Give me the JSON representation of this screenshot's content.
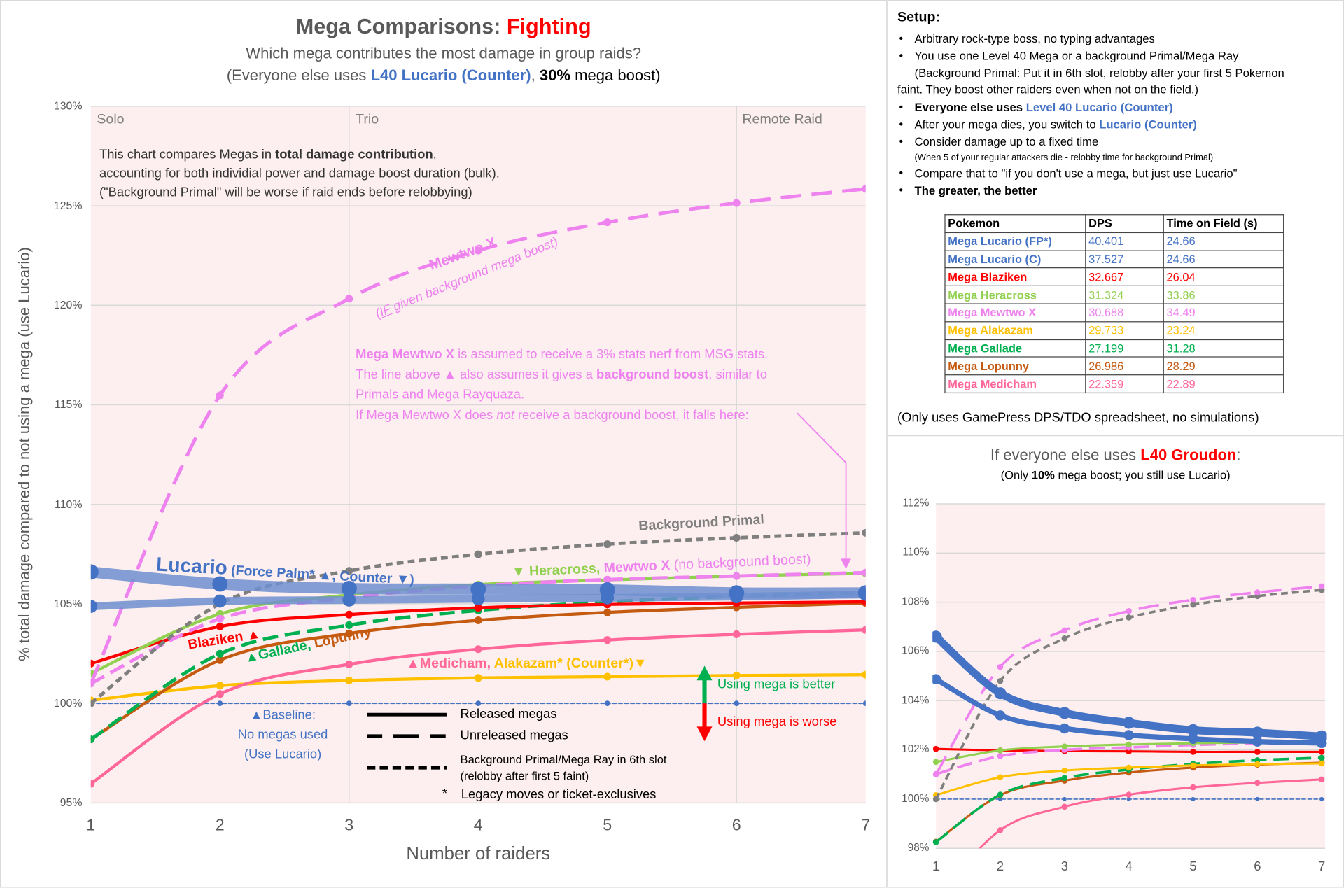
{
  "main": {
    "title_prefix": "Mega Comparisons: ",
    "title_type": "Fighting",
    "subtitle": "Which mega contributes the most damage in group raids?",
    "subtitle2_a": "(Everyone else uses ",
    "subtitle2_b": "L40 Lucario (Counter)",
    "subtitle2_c": ", ",
    "subtitle2_d": "30%",
    "subtitle2_e": " mega boost)",
    "region_solo": "Solo",
    "region_trio": "Trio",
    "region_remote": "Remote Raid",
    "desc1_a": "This chart compares Megas in ",
    "desc1_b": "total damage contribution",
    "desc1_c": ",",
    "desc2": "accounting for both individial power and damage boost duration (bulk).",
    "desc3": "(\"Background Primal\" will be worse if raid ends before relobbying)",
    "mewtwo_label": "Mewtwo X",
    "mewtwo_sub_a": "(",
    "mewtwo_sub_b": "IF",
    "mewtwo_sub_c": " given background mega boost)",
    "note1_a": "Mega Mewtwo X",
    "note1_b": " is assumed to receive a 3% stats nerf from MSG stats.",
    "note2_a": "The line above ▲ also assumes it gives a ",
    "note2_b": "background boost",
    "note2_c": ", similar to",
    "note3": "Primals and Mega Rayquaza.",
    "note4_a": "If Mega Mewtwo X does ",
    "note4_b": "not",
    "note4_c": " receive a background boost, it falls here:",
    "bg_primal_label": "Background Primal",
    "hera_label_a": "▼ Heracross, ",
    "hera_label_b": "Mewtwo X",
    "hera_label_c": " (no background boost)",
    "lucario_label_a": "Lucario",
    "lucario_label_b": " (Force Palm* ▲, Counter ▼)",
    "blaziken_label": "Blaziken ▲",
    "gallade_label_a": "▲Gallade, ",
    "gallade_label_b": "Lopunny",
    "medicham_label_a": "▲Medicham, ",
    "medicham_label_b": "Alakazam* (Counter*)▼",
    "better_label": "Using mega is better",
    "worse_label": "Using mega is worse",
    "baseline_1": "▲Baseline:",
    "baseline_2": "No megas used",
    "baseline_3": "(Use Lucario)",
    "legend_released": "Released megas",
    "legend_unreleased": "Unreleased megas",
    "legend_bg_1": "Background Primal/Mega Ray in 6th slot",
    "legend_bg_2": "(relobby after first 5 faint)",
    "legend_star": "*",
    "legend_legacy": "Legacy moves or ticket-exclusives"
  },
  "setup": {
    "heading": "Setup:",
    "b1": "Arbitrary rock-type boss, no typing advantages",
    "b2": "You use one Level 40 Mega or a background Primal/Mega Ray",
    "b2_cont1": "(Background Primal: Put it in 6th slot, relobby after your first 5 Pokemon",
    "b2_cont2": "faint. They boost other raiders even when not on the field.)",
    "b3_a": "Everyone else uses ",
    "b3_b": "Level 40 Lucario (Counter)",
    "b4_a": "After your mega dies, you switch to ",
    "b4_b": "Lucario (Counter)",
    "b5": "Consider damage up to a fixed time",
    "b5_sub": "(When 5 of your regular attackers die - relobby time for background Primal)",
    "b6": "Compare that to \"if you don't use a mega, but just use Lucario\"",
    "b7": "The greater, the better",
    "footnote": "(Only uses GamePress DPS/TDO spreadsheet, no simulations)"
  },
  "table": {
    "headers": [
      "Pokemon",
      "DPS",
      "Time on Field (s)"
    ],
    "rows": [
      {
        "pokemon": "Mega Lucario (FP*)",
        "dps": "40.401",
        "time": "24.66",
        "color": "#4472c4"
      },
      {
        "pokemon": "Mega Lucario (C)",
        "dps": "37.527",
        "time": "24.66",
        "color": "#4472c4"
      },
      {
        "pokemon": "Mega Blaziken",
        "dps": "32.667",
        "time": "26.04",
        "color": "#ff0000"
      },
      {
        "pokemon": "Mega Heracross",
        "dps": "31.324",
        "time": "33.86",
        "color": "#92d050"
      },
      {
        "pokemon": "Mega Mewtwo X",
        "dps": "30.688",
        "time": "34.49",
        "color": "#ee82ee"
      },
      {
        "pokemon": "Mega Alakazam",
        "dps": "29.733",
        "time": "23.24",
        "color": "#ffc000"
      },
      {
        "pokemon": "Mega Gallade",
        "dps": "27.199",
        "time": "31.28",
        "color": "#00b050"
      },
      {
        "pokemon": "Mega Lopunny",
        "dps": "26.986",
        "time": "28.29",
        "color": "#c55a11"
      },
      {
        "pokemon": "Mega Medicham",
        "dps": "22.359",
        "time": "22.89",
        "color": "#ff6699"
      }
    ]
  },
  "small": {
    "title_a": "If everyone else uses ",
    "title_b": "L40 Groudon",
    "title_c": ":",
    "sub_a": "(Only ",
    "sub_b": "10%",
    "sub_c": " mega boost; you still use Lucario)"
  },
  "chart_data": [
    {
      "type": "line",
      "title": "Mega Comparisons: Fighting",
      "xlabel": "Number of raiders",
      "ylabel": "% total damage compared to not using a mega (use Lucario)",
      "x": [
        1,
        2,
        3,
        4,
        5,
        6,
        7
      ],
      "ylim": [
        95,
        130
      ],
      "y_ticks": [
        "95%",
        "100%",
        "105%",
        "110%",
        "115%",
        "120%",
        "125%",
        "130%"
      ],
      "x_ticks": [
        "1",
        "2",
        "3",
        "4",
        "5",
        "6",
        "7"
      ],
      "grid": true,
      "background": "#fdefef",
      "series": [
        {
          "name": "Baseline",
          "color": "#4472c4",
          "style": "dotted",
          "values": [
            100,
            100,
            100,
            100,
            100,
            100,
            100
          ]
        },
        {
          "name": "Alakazam* (Counter*)",
          "color": "#ffc000",
          "style": "solid",
          "values": [
            100.15,
            100.89,
            101.15,
            101.28,
            101.34,
            101.4,
            101.44
          ]
        },
        {
          "name": "Medicham",
          "color": "#ff6699",
          "style": "solid",
          "values": [
            95.96,
            100.47,
            101.96,
            102.72,
            103.18,
            103.47,
            103.69
          ]
        },
        {
          "name": "Lopunny",
          "color": "#c55a11",
          "style": "solid",
          "values": [
            98.19,
            102.17,
            103.51,
            104.17,
            104.57,
            104.82,
            105.04
          ]
        },
        {
          "name": "Gallade",
          "color": "#00b050",
          "style": "dashed",
          "values": [
            98.19,
            102.49,
            103.93,
            104.67,
            105.1,
            105.38,
            105.55
          ]
        },
        {
          "name": "Blaziken",
          "color": "#ff0000",
          "style": "solid",
          "values": [
            102.0,
            103.86,
            104.46,
            104.8,
            104.97,
            105.04,
            105.1
          ]
        },
        {
          "name": "Heracross",
          "color": "#92d050",
          "style": "solid",
          "values": [
            101.5,
            104.49,
            105.45,
            105.97,
            106.2,
            106.4,
            106.53
          ]
        },
        {
          "name": "Mewtwo X (no background boost)",
          "color": "#ee82ee",
          "style": "dashed",
          "values": [
            101.0,
            104.25,
            105.3,
            105.9,
            106.22,
            106.4,
            106.57
          ]
        },
        {
          "name": "Background Primal",
          "color": "#7f7f7f",
          "style": "short-dash",
          "values": [
            100.0,
            105.0,
            106.66,
            107.49,
            108.0,
            108.32,
            108.57
          ]
        },
        {
          "name": "Mewtwo X (IF given background mega boost)",
          "color": "#ee82ee",
          "style": "long-dash",
          "values": [
            101.0,
            115.48,
            120.33,
            122.75,
            124.17,
            125.14,
            125.85
          ]
        },
        {
          "name": "Lucario (Counter)",
          "color": "#4472c4",
          "style": "thick",
          "values": [
            104.87,
            105.14,
            105.19,
            105.25,
            105.3,
            105.36,
            105.48
          ]
        },
        {
          "name": "Lucario (Force Palm*)",
          "color": "#4472c4",
          "style": "thicker",
          "values": [
            106.6,
            106.0,
            105.77,
            105.74,
            105.7,
            105.55,
            105.55
          ]
        }
      ]
    },
    {
      "type": "line",
      "title": "If everyone else uses L40 Groudon:",
      "x": [
        1,
        2,
        3,
        4,
        5,
        6,
        7
      ],
      "ylim": [
        98,
        112
      ],
      "y_ticks": [
        "98%",
        "100%",
        "102%",
        "104%",
        "106%",
        "108%",
        "110%",
        "112%"
      ],
      "x_ticks": [
        "1",
        "2",
        "3",
        "4",
        "5",
        "6",
        "7"
      ],
      "grid": true,
      "background": "#fdefef",
      "series": [
        {
          "color": "#4472c4",
          "style": "dotted",
          "values": [
            100,
            100,
            100,
            100,
            100,
            100,
            100
          ]
        },
        {
          "color": "#ff6699",
          "style": "solid",
          "values": [
            96.0,
            98.74,
            99.69,
            100.18,
            100.48,
            100.66,
            100.8
          ]
        },
        {
          "color": "#c55a11",
          "style": "solid",
          "values": [
            98.27,
            100.16,
            100.75,
            101.08,
            101.28,
            101.4,
            101.48
          ]
        },
        {
          "color": "#00b050",
          "style": "dashed",
          "values": [
            98.25,
            100.18,
            100.86,
            101.2,
            101.43,
            101.58,
            101.68
          ]
        },
        {
          "color": "#ffc000",
          "style": "solid",
          "values": [
            100.16,
            100.89,
            101.16,
            101.28,
            101.37,
            101.42,
            101.45
          ]
        },
        {
          "color": "#ff0000",
          "style": "solid",
          "values": [
            102.04,
            101.98,
            101.95,
            101.94,
            101.92,
            101.92,
            101.92
          ]
        },
        {
          "color": "#ee82ee",
          "style": "dashed",
          "values": [
            101.02,
            101.75,
            102.0,
            102.1,
            102.2,
            102.26,
            102.27
          ]
        },
        {
          "color": "#92d050",
          "style": "solid",
          "values": [
            101.51,
            101.98,
            102.14,
            102.22,
            102.27,
            102.3,
            102.34
          ]
        },
        {
          "color": "#7f7f7f",
          "style": "short-dash",
          "values": [
            100.0,
            104.8,
            106.53,
            107.38,
            107.9,
            108.25,
            108.5
          ]
        },
        {
          "color": "#ee82ee",
          "style": "long-dash",
          "values": [
            101.0,
            105.37,
            106.86,
            107.64,
            108.1,
            108.4,
            108.65
          ]
        },
        {
          "color": "#4472c4",
          "style": "thick",
          "values": [
            104.87,
            103.4,
            102.87,
            102.6,
            102.45,
            102.34,
            102.28
          ]
        },
        {
          "color": "#4472c4",
          "style": "thicker",
          "values": [
            106.6,
            104.3,
            103.5,
            103.1,
            102.8,
            102.7,
            102.55
          ]
        }
      ]
    }
  ]
}
